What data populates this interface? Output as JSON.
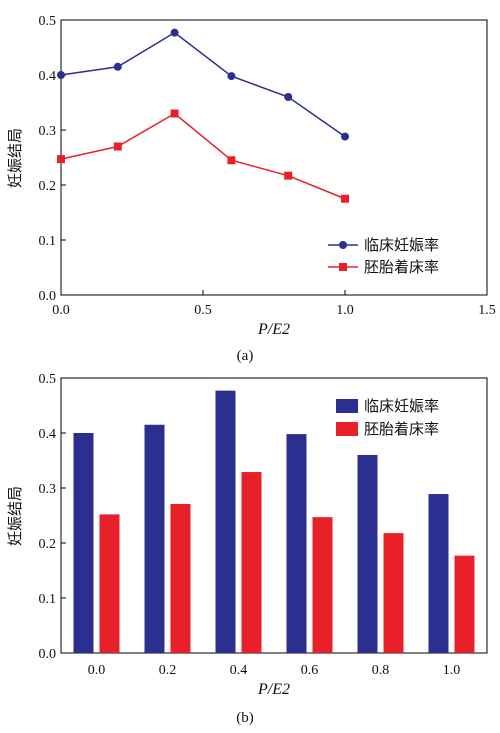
{
  "chart_data": [
    {
      "type": "line",
      "caption": "(a)",
      "xlabel": "P/E2",
      "ylabel": "妊娠结局",
      "xlim": [
        0,
        1.5
      ],
      "ylim": [
        0,
        0.5
      ],
      "xticks": [
        "0.0",
        "0.5",
        "1.0",
        "1.5"
      ],
      "yticks": [
        "0.0",
        "0.1",
        "0.2",
        "0.3",
        "0.4",
        "0.5"
      ],
      "x": [
        0.0,
        0.2,
        0.4,
        0.6,
        0.8,
        1.0
      ],
      "series": [
        {
          "name": "临床妊娠率",
          "values": [
            0.4,
            0.415,
            0.477,
            0.398,
            0.36,
            0.288
          ],
          "color": "#2b2f8f",
          "marker": "circle"
        },
        {
          "name": "胚胎着床率",
          "values": [
            0.247,
            0.27,
            0.33,
            0.245,
            0.217,
            0.175
          ],
          "color": "#e8202a",
          "marker": "square"
        }
      ],
      "legend": "bottom-right",
      "grid": false
    },
    {
      "type": "bar",
      "caption": "(b)",
      "xlabel": "P/E2",
      "ylabel": "妊娠结局",
      "ylim": [
        0,
        0.5
      ],
      "categories": [
        "0.0",
        "0.2",
        "0.4",
        "0.6",
        "0.8",
        "1.0"
      ],
      "yticks": [
        "0.0",
        "0.1",
        "0.2",
        "0.3",
        "0.4",
        "0.5"
      ],
      "series": [
        {
          "name": "临床妊娠率",
          "values": [
            0.4,
            0.415,
            0.477,
            0.398,
            0.36,
            0.289
          ],
          "color": "#2b2f8f"
        },
        {
          "name": "胚胎着床率",
          "values": [
            0.252,
            0.271,
            0.329,
            0.247,
            0.218,
            0.177
          ],
          "color": "#e8202a"
        }
      ],
      "legend": "top-right",
      "grid": false
    }
  ]
}
